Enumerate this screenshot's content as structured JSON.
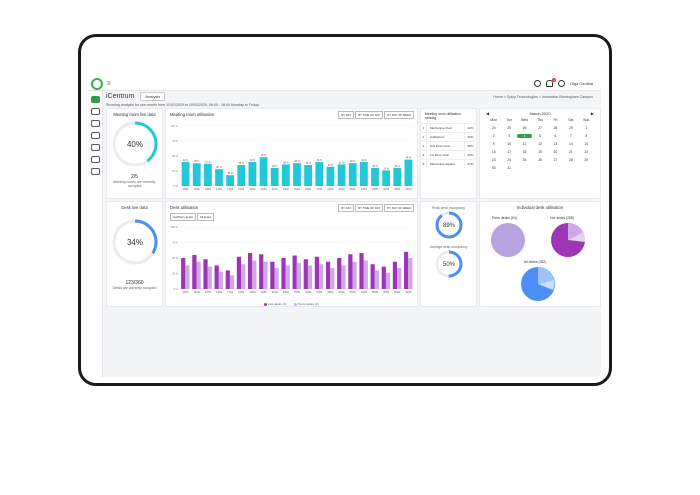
{
  "app": {
    "name": "iCentrum",
    "analysis_select": "Analysis",
    "colors": {
      "brand": "#37b24d",
      "teal": "#22c7d8",
      "purple": "#9c36b5",
      "lavender": "#b8a2e0",
      "blue": "#4c8df6"
    }
  },
  "header": {
    "user_name": "Olga Ozolina",
    "notifications_count": "1",
    "breadcrumb": "Home > Spicy Technologies > Innovation Birmingham Campus"
  },
  "intro": "Showing analysis for one month from 11/02/2020 to 10/03/2020, 08:00 - 18:00 Monday to Friday.",
  "meeting_live": {
    "title": "Meeting room live data",
    "percent": 40,
    "percent_label": "40%",
    "fraction": "2/5",
    "caption": "Meeting rooms are currently occupied"
  },
  "meeting_util": {
    "title": "Meeting room utilisation",
    "buttons": [
      "BY DAY",
      "BY TIME OF DAY",
      "BY DAY OF WEEK"
    ],
    "chart_data": {
      "type": "bar",
      "ylim": [
        0,
        100
      ],
      "yticks": [
        "100 %",
        "75 %",
        "50 %",
        "25 %",
        "0 %"
      ],
      "categories": [
        "11/02",
        "12/02",
        "13/02",
        "14/02",
        "17/02",
        "18/02",
        "19/02",
        "20/02",
        "21/02",
        "24/02",
        "25/02",
        "26/02",
        "27/02",
        "28/02",
        "02/03",
        "03/03",
        "04/03",
        "05/03",
        "06/03",
        "09/03",
        "10/03"
      ],
      "values": [
        40,
        38,
        37,
        28,
        18,
        35,
        40,
        48,
        30,
        36,
        38,
        35,
        40,
        32,
        36,
        38,
        40,
        30,
        26,
        30,
        44
      ],
      "xlabels": [
        "11/02",
        "12/02",
        "13/02",
        "14/02",
        "17/02",
        "18/02",
        "19/02",
        "20/02",
        "21/02",
        "24/02",
        "25/02",
        "26/02",
        "27/02",
        "28/02",
        "02/03",
        "03/03",
        "04/03",
        "05/03",
        "06/03",
        "09/03",
        "10/03"
      ]
    }
  },
  "ranking": {
    "title": "Meeting room utilisation ranking",
    "rows": [
      {
        "n": "1",
        "name": "Mezzanine Oval",
        "pct": "42%"
      },
      {
        "n": "2",
        "name": "Auditorium",
        "pct": "40%"
      },
      {
        "n": "3",
        "name": "2nd Floor Oval",
        "pct": "38%"
      },
      {
        "n": "4",
        "name": "1st Floor Oval",
        "pct": "32%"
      },
      {
        "n": "5",
        "name": "Mezzanine Square",
        "pct": "27%"
      }
    ]
  },
  "calendar": {
    "month": "March 2020",
    "weekdays": [
      "Mon",
      "Tue",
      "Wed",
      "Thu",
      "Fri",
      "Sat",
      "Sun"
    ],
    "days": [
      "24",
      "25",
      "26",
      "27",
      "28",
      "29",
      "1",
      "2",
      "3",
      "4",
      "5",
      "6",
      "7",
      "8",
      "9",
      "10",
      "11",
      "12",
      "13",
      "14",
      "15",
      "16",
      "17",
      "18",
      "19",
      "20",
      "21",
      "22",
      "23",
      "24",
      "25",
      "26",
      "27",
      "28",
      "29",
      "30",
      "31"
    ],
    "selected": "4"
  },
  "desk_live": {
    "title": "Desk live data",
    "percent": 34,
    "percent_label": "34%",
    "fraction": "123/360",
    "caption": "Desks are currently occupied"
  },
  "desk_util": {
    "title": "Desk utilisation",
    "tabs": [
      "Hot/Perm desks",
      "All desks"
    ],
    "buttons": [
      "BY DAY",
      "BY TIME OF DAY",
      "BY DAY OF WEEK"
    ],
    "legend": [
      "Hot desks (4)",
      "Perm desks (4)"
    ],
    "chart_data": {
      "type": "bar",
      "ylim": [
        0,
        100
      ],
      "yticks": [
        "100 %",
        "75 %",
        "50 %",
        "25 %",
        "0 %"
      ],
      "categories": [
        "11/02",
        "12/02",
        "13/02",
        "14/02",
        "17/02",
        "18/02",
        "19/02",
        "20/02",
        "21/02",
        "24/02",
        "25/02",
        "26/02",
        "27/02",
        "28/02",
        "02/03",
        "03/03",
        "04/03",
        "05/03",
        "06/03",
        "09/03",
        "10/03"
      ],
      "series": [
        {
          "name": "Hot desks (4)",
          "values": [
            50,
            55,
            48,
            38,
            30,
            52,
            58,
            56,
            44,
            50,
            54,
            48,
            52,
            44,
            50,
            56,
            58,
            40,
            36,
            44,
            60
          ]
        },
        {
          "name": "Perm desks (4)",
          "values": [
            38,
            44,
            36,
            28,
            22,
            40,
            46,
            44,
            34,
            38,
            42,
            38,
            40,
            34,
            38,
            44,
            46,
            30,
            26,
            34,
            50
          ]
        }
      ],
      "xlabels": [
        "11/02",
        "12/02",
        "13/02",
        "14/02",
        "17/02",
        "18/02",
        "19/02",
        "20/02",
        "21/02",
        "24/02",
        "25/02",
        "26/02",
        "27/02",
        "28/02",
        "02/03",
        "03/03",
        "04/03",
        "05/03",
        "06/03",
        "09/03",
        "10/03"
      ]
    }
  },
  "occupancy": {
    "peak_title": "Peak desk occupancy",
    "peak": 89,
    "peak_label": "89%",
    "avg_title": "Average desk occupancy",
    "avg": 50,
    "avg_label": "50%"
  },
  "individual": {
    "title": "Individual desk utilisation",
    "perm_title": "Perm desks (64)",
    "hot_title": "Hot desks (288)",
    "all_title": "All desks (352)",
    "perm": [
      100
    ],
    "hot": [
      70,
      20,
      10
    ],
    "all": [
      60,
      25,
      15
    ]
  }
}
